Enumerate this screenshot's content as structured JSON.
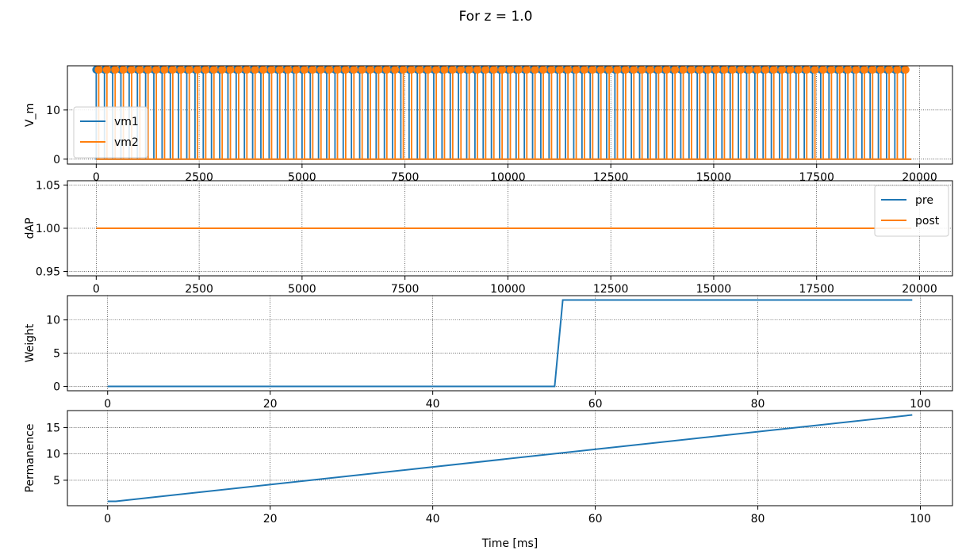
{
  "figure": {
    "suptitle": "For z = 1.0"
  },
  "chart_data": [
    {
      "type": "line",
      "ylabel": "V_m",
      "xlim": [
        -700,
        20800
      ],
      "ylim": [
        -1,
        19
      ],
      "xticks": [
        0,
        2500,
        5000,
        7500,
        10000,
        12500,
        15000,
        17500,
        20000
      ],
      "yticks": [
        0,
        10
      ],
      "grid": true,
      "legend_position": "lower-left",
      "spike_train": {
        "t_start": 0,
        "t_end": 19700,
        "period": 200,
        "spike_height": 18.2,
        "baseline": 0,
        "line_end": 19800
      },
      "series": [
        {
          "name": "vm1",
          "color": "#1f77b4",
          "phase_offset": 0,
          "marker": "circle"
        },
        {
          "name": "vm2",
          "color": "#ff7f0e",
          "phase_offset": 60,
          "marker": "circle"
        }
      ]
    },
    {
      "type": "line",
      "ylabel": "dAP",
      "xlim": [
        -700,
        20800
      ],
      "ylim": [
        0.945,
        1.055
      ],
      "xticks": [
        0,
        2500,
        5000,
        7500,
        10000,
        12500,
        15000,
        17500,
        20000
      ],
      "yticks": [
        0.95,
        1.0,
        1.05
      ],
      "ytick_labels": [
        "0.95",
        "1.00",
        "1.05"
      ],
      "grid": true,
      "legend_position": "upper-right",
      "series": [
        {
          "name": "pre",
          "color": "#1f77b4",
          "x": [
            0,
            19800
          ],
          "y": [
            1.0,
            1.0
          ]
        },
        {
          "name": "post",
          "color": "#ff7f0e",
          "x": [
            0,
            19800
          ],
          "y": [
            1.0,
            1.0
          ]
        }
      ]
    },
    {
      "type": "line",
      "ylabel": "Weight",
      "xlim": [
        -4.95,
        103.95
      ],
      "ylim": [
        -0.65,
        13.65
      ],
      "xticks": [
        0,
        20,
        40,
        60,
        80,
        100
      ],
      "yticks": [
        0,
        5,
        10
      ],
      "grid": true,
      "series": [
        {
          "name": "",
          "color": "#1f77b4",
          "x": [
            0,
            55,
            56,
            99
          ],
          "y": [
            0,
            0,
            13,
            13
          ]
        }
      ]
    },
    {
      "type": "line",
      "ylabel": "Permanence",
      "xlabel": "Time [ms]",
      "xlim": [
        -4.95,
        103.95
      ],
      "ylim": [
        0.17,
        18.23
      ],
      "xticks": [
        0,
        20,
        40,
        60,
        80,
        100
      ],
      "yticks": [
        5,
        10,
        15
      ],
      "grid": true,
      "series": [
        {
          "name": "",
          "color": "#1f77b4",
          "x": [
            0,
            1,
            99
          ],
          "y": [
            1.0,
            1.0,
            17.4
          ]
        }
      ]
    }
  ]
}
